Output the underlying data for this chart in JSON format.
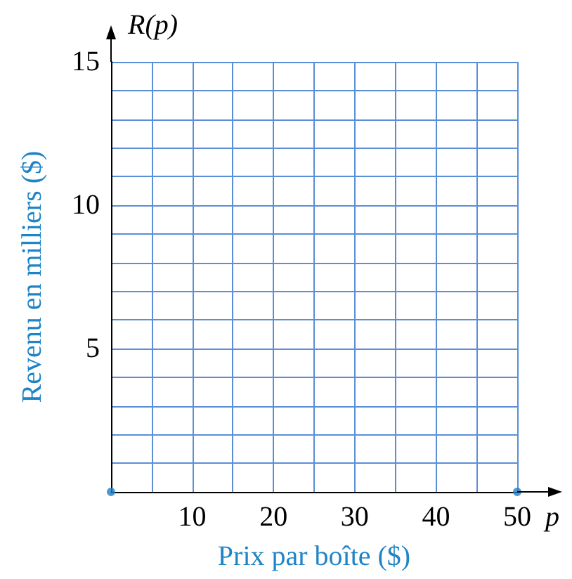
{
  "chart_data": {
    "type": "scatter",
    "xlabel": "Prix par boîte ($)",
    "ylabel": "Revenu en milliers ($)",
    "annotations": [
      "R(p)",
      "p"
    ],
    "x": [
      0,
      50
    ],
    "values": [
      0,
      0
    ],
    "color": "#1f7fc4",
    "marker": "circle",
    "grid": true,
    "xlim": [
      0,
      50
    ],
    "ylim": [
      0,
      15
    ],
    "xticks": [
      {
        "value": 5,
        "label": null
      },
      10,
      {
        "value": 15,
        "label": null
      },
      20,
      {
        "value": 25,
        "label": null
      },
      30,
      {
        "value": 35,
        "label": null
      },
      40,
      {
        "value": 45,
        "label": null
      },
      50
    ],
    "yticks": [
      {
        "value": 1,
        "label": null
      },
      {
        "value": 2,
        "label": null
      },
      {
        "value": 3,
        "label": null
      },
      {
        "value": 4,
        "label": null
      },
      5,
      {
        "value": 6,
        "label": null
      },
      {
        "value": 7,
        "label": null
      },
      {
        "value": 8,
        "label": null
      },
      {
        "value": 9,
        "label": null
      },
      10,
      {
        "value": 11,
        "label": null
      },
      {
        "value": 12,
        "label": null
      },
      {
        "value": 13,
        "label": null
      },
      {
        "value": 14,
        "label": null
      },
      15
    ]
  }
}
